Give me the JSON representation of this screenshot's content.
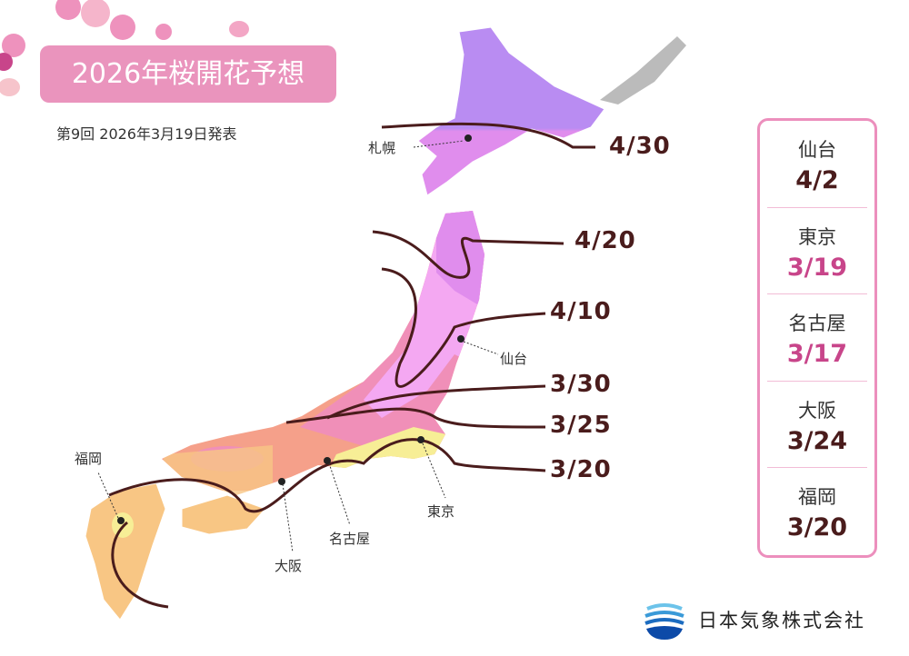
{
  "title": "2026年桜開花予想",
  "subtitle": "第9回 2026年3月19日発表",
  "isolines": [
    {
      "label": "4/30",
      "color": "#b98cf2"
    },
    {
      "label": "4/20",
      "color": "#e08ded"
    },
    {
      "label": "4/10",
      "color": "#f4a8f2"
    },
    {
      "label": "3/30",
      "color": "#f08fb8"
    },
    {
      "label": "3/25",
      "color": "#f5a08a"
    },
    {
      "label": "3/20",
      "color": "#f8c684"
    }
  ],
  "warm_color": "#f7ee96",
  "line_color": "#4a1c1c",
  "cities": [
    {
      "name": "札幌"
    },
    {
      "name": "仙台"
    },
    {
      "name": "東京"
    },
    {
      "name": "名古屋"
    },
    {
      "name": "大阪"
    },
    {
      "name": "福岡"
    }
  ],
  "panel": [
    {
      "city": "仙台",
      "date": "4/2",
      "color": "#4a1c1c"
    },
    {
      "city": "東京",
      "date": "3/19",
      "color": "#c8458a"
    },
    {
      "city": "名古屋",
      "date": "3/17",
      "color": "#c8458a"
    },
    {
      "city": "大阪",
      "date": "3/24",
      "color": "#4a1c1c"
    },
    {
      "city": "福岡",
      "date": "3/20",
      "color": "#4a1c1c"
    }
  ],
  "logo": {
    "text": "日本気象株式会社"
  }
}
